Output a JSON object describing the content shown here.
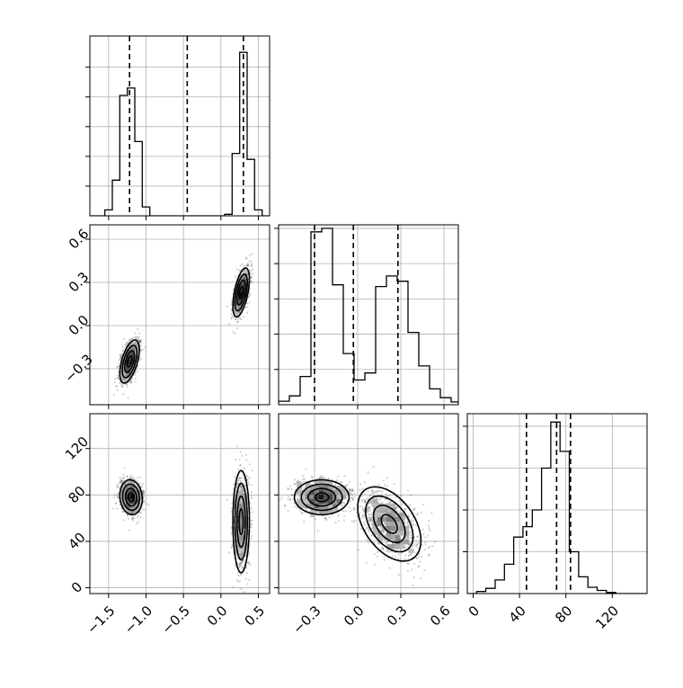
{
  "chart_data": [
    {
      "id": "hist-p1",
      "type": "histogram",
      "xlim": [
        -1.75,
        0.65
      ],
      "ylim": [
        0,
        1210
      ],
      "grid": true,
      "bins": [
        -1.75,
        -1.65,
        -1.55,
        -1.45,
        -1.35,
        -1.25,
        -1.15,
        -1.05,
        -0.95,
        -0.85,
        -0.75,
        -0.65,
        -0.55,
        -0.45,
        -0.35,
        -0.25,
        -0.15,
        -0.05,
        0.05,
        0.15,
        0.25,
        0.35,
        0.45,
        0.55,
        0.65
      ],
      "counts": [
        0,
        0,
        40,
        240,
        810,
        860,
        500,
        60,
        0,
        0,
        0,
        0,
        0,
        0,
        0,
        0,
        0,
        0,
        10,
        420,
        1100,
        380,
        40,
        0
      ],
      "quantiles": [
        -1.22,
        -0.45,
        0.3
      ],
      "x_ticks": [
        -1.5,
        -1.0,
        -0.5,
        0.0,
        0.5
      ],
      "y_ticks": [
        200,
        400,
        600,
        800,
        1000
      ]
    },
    {
      "id": "hist-p2",
      "type": "histogram",
      "xlim": [
        -0.55,
        0.7
      ],
      "ylim": [
        0,
        510
      ],
      "grid": true,
      "bins": [
        -0.55,
        -0.475,
        -0.4,
        -0.325,
        -0.25,
        -0.175,
        -0.1,
        -0.025,
        0.05,
        0.125,
        0.2,
        0.275,
        0.35,
        0.425,
        0.5,
        0.575,
        0.65,
        0.7
      ],
      "counts": [
        10,
        25,
        80,
        490,
        500,
        340,
        145,
        70,
        90,
        335,
        365,
        350,
        205,
        110,
        45,
        20,
        8
      ],
      "quantiles": [
        -0.3,
        -0.03,
        0.28
      ],
      "x_ticks": [
        -0.3,
        0.0,
        0.3,
        0.6
      ],
      "y_ticks": [
        100,
        200,
        300,
        400,
        500
      ]
    },
    {
      "id": "hist-p3",
      "type": "histogram",
      "xlim": [
        -5,
        150
      ],
      "ylim": [
        0,
        860
      ],
      "grid": true,
      "bins": [
        -5,
        3,
        11,
        19,
        27,
        35,
        43,
        51,
        59,
        67,
        75,
        83,
        91,
        99,
        107,
        115,
        123,
        131,
        139,
        150
      ],
      "counts": [
        0,
        10,
        25,
        65,
        140,
        270,
        320,
        400,
        600,
        820,
        680,
        200,
        80,
        30,
        15,
        5,
        0,
        0,
        0
      ],
      "quantiles": [
        46,
        72,
        84
      ],
      "x_ticks": [
        0,
        40,
        80,
        120
      ],
      "y_ticks": [
        200,
        400,
        600,
        800
      ]
    },
    {
      "id": "scatter-p1-p2",
      "type": "scatter",
      "xlim": [
        -1.75,
        0.65
      ],
      "ylim": [
        -0.55,
        0.7
      ],
      "grid": true,
      "x_ticks": [
        -1.5,
        -1.0,
        -0.5,
        0.0,
        0.5
      ],
      "y_ticks": [
        -0.3,
        0.0,
        0.3,
        0.6
      ],
      "y_tick_labels": [
        "−0.3",
        "0.0",
        "0.3",
        "0.6"
      ],
      "clusters": [
        {
          "cx": -1.22,
          "cy": -0.25,
          "sx": 0.065,
          "sy": 0.075,
          "rho": 0.55,
          "n": 900
        },
        {
          "cx": 0.27,
          "cy": 0.23,
          "sx": 0.055,
          "sy": 0.085,
          "rho": 0.55,
          "n": 900
        }
      ]
    },
    {
      "id": "scatter-p1-p3",
      "type": "scatter",
      "xlim": [
        -1.75,
        0.65
      ],
      "ylim": [
        -5,
        150
      ],
      "grid": true,
      "x_ticks": [
        -1.5,
        -1.0,
        -0.5,
        0.0,
        0.5
      ],
      "x_tick_labels": [
        "−1.5",
        "−1.0",
        "−0.5",
        "0.0",
        "0.5"
      ],
      "y_ticks": [
        0,
        40,
        80,
        120
      ],
      "clusters": [
        {
          "cx": -1.2,
          "cy": 78,
          "sx": 0.075,
          "sy": 7.5,
          "rho": -0.1,
          "n": 900
        },
        {
          "cx": 0.27,
          "cy": 57,
          "sx": 0.055,
          "sy": 22,
          "rho": 0.0,
          "n": 900
        }
      ]
    },
    {
      "id": "scatter-p2-p3",
      "type": "scatter",
      "xlim": [
        -0.55,
        0.7
      ],
      "ylim": [
        -5,
        150
      ],
      "grid": true,
      "x_ticks": [
        -0.3,
        0.0,
        0.3,
        0.6
      ],
      "x_tick_labels": [
        "−0.3",
        "0.0",
        "0.3",
        "0.6"
      ],
      "y_ticks": [
        0,
        40,
        80,
        120
      ],
      "clusters": [
        {
          "cx": -0.25,
          "cy": 78,
          "sx": 0.095,
          "sy": 7.5,
          "rho": 0.0,
          "n": 900
        },
        {
          "cx": 0.22,
          "cy": 55,
          "sx": 0.11,
          "sy": 16,
          "rho": -0.45,
          "n": 900
        }
      ]
    }
  ]
}
